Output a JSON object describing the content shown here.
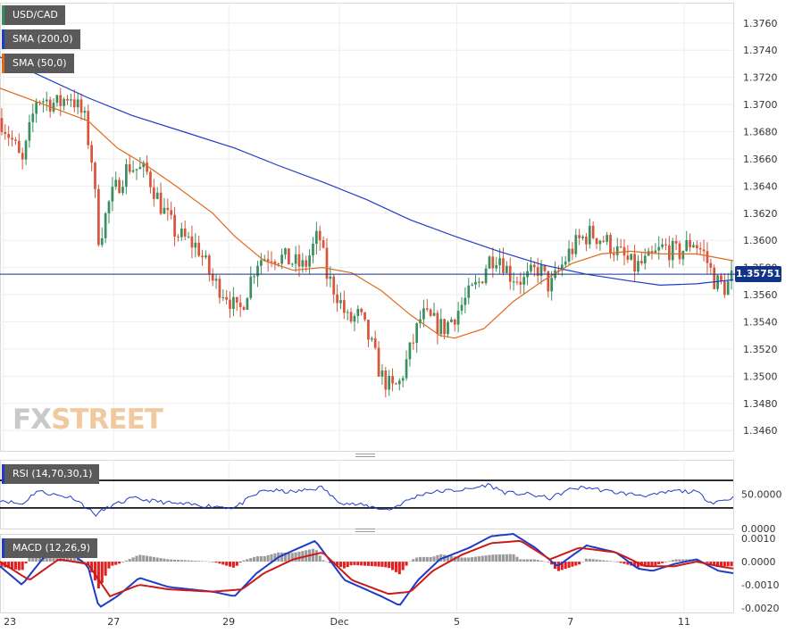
{
  "legend": {
    "pair": "USD/CAD",
    "sma200": "SMA (200,0)",
    "sma50": "SMA (50,0)",
    "rsi": "RSI (14,70,30,1)",
    "macd": "MACD (12,26,9)"
  },
  "brand": {
    "fx": "FX",
    "street": "STREET"
  },
  "last_price": "1.35751",
  "colors": {
    "up": "#3a8f5f",
    "down": "#d9543a",
    "sma200": "#1e3cc8",
    "sma50": "#e06a1a",
    "macd_line": "#1e3cc8",
    "signal_line": "#cc1a1a",
    "hist_positive": "#9a9a9a",
    "hist_negative": "#e32020",
    "last_price_bg": "#12338a"
  },
  "chart_data": [
    {
      "type": "candlestick",
      "title": "USD/CAD",
      "ylim": [
        1.3445,
        1.3775
      ],
      "yticks": [
        "1.3760",
        "1.3740",
        "1.3720",
        "1.3700",
        "1.3680",
        "1.3660",
        "1.3640",
        "1.3620",
        "1.3600",
        "1.3580",
        "1.3560",
        "1.3540",
        "1.3520",
        "1.3500",
        "1.3480",
        "1.3460"
      ],
      "xticks": [
        "23",
        "27",
        "29",
        "Dec",
        "5",
        "7",
        "11"
      ],
      "x_tick_pos": [
        0.005,
        0.155,
        0.312,
        0.463,
        0.623,
        0.778,
        0.933
      ],
      "price_path": [
        {
          "t": 0.0,
          "p": 1.369
        },
        {
          "t": 0.02,
          "p": 1.367
        },
        {
          "t": 0.03,
          "p": 1.3655
        },
        {
          "t": 0.05,
          "p": 1.3705
        },
        {
          "t": 0.08,
          "p": 1.37
        },
        {
          "t": 0.095,
          "p": 1.3708
        },
        {
          "t": 0.115,
          "p": 1.369
        },
        {
          "t": 0.125,
          "p": 1.366
        },
        {
          "t": 0.135,
          "p": 1.36
        },
        {
          "t": 0.15,
          "p": 1.363
        },
        {
          "t": 0.175,
          "p": 1.3655
        },
        {
          "t": 0.2,
          "p": 1.365
        },
        {
          "t": 0.22,
          "p": 1.3625
        },
        {
          "t": 0.24,
          "p": 1.3605
        },
        {
          "t": 0.27,
          "p": 1.3595
        },
        {
          "t": 0.29,
          "p": 1.357
        },
        {
          "t": 0.31,
          "p": 1.356
        },
        {
          "t": 0.325,
          "p": 1.3545
        },
        {
          "t": 0.335,
          "p": 1.356
        },
        {
          "t": 0.35,
          "p": 1.3585
        },
        {
          "t": 0.37,
          "p": 1.359
        },
        {
          "t": 0.395,
          "p": 1.3585
        },
        {
          "t": 0.415,
          "p": 1.358
        },
        {
          "t": 0.435,
          "p": 1.3605
        },
        {
          "t": 0.445,
          "p": 1.3575
        },
        {
          "t": 0.46,
          "p": 1.356
        },
        {
          "t": 0.475,
          "p": 1.354
        },
        {
          "t": 0.49,
          "p": 1.3545
        },
        {
          "t": 0.505,
          "p": 1.3525
        },
        {
          "t": 0.52,
          "p": 1.35
        },
        {
          "t": 0.535,
          "p": 1.349
        },
        {
          "t": 0.545,
          "p": 1.3495
        },
        {
          "t": 0.56,
          "p": 1.352
        },
        {
          "t": 0.575,
          "p": 1.3545
        },
        {
          "t": 0.59,
          "p": 1.354
        },
        {
          "t": 0.605,
          "p": 1.3535
        },
        {
          "t": 0.62,
          "p": 1.3545
        },
        {
          "t": 0.64,
          "p": 1.356
        },
        {
          "t": 0.655,
          "p": 1.357
        },
        {
          "t": 0.665,
          "p": 1.3585
        },
        {
          "t": 0.68,
          "p": 1.359
        },
        {
          "t": 0.695,
          "p": 1.3575
        },
        {
          "t": 0.715,
          "p": 1.357
        },
        {
          "t": 0.735,
          "p": 1.358
        },
        {
          "t": 0.75,
          "p": 1.3565
        },
        {
          "t": 0.76,
          "p": 1.3575
        },
        {
          "t": 0.775,
          "p": 1.359
        },
        {
          "t": 0.79,
          "p": 1.36
        },
        {
          "t": 0.805,
          "p": 1.3605
        },
        {
          "t": 0.825,
          "p": 1.36
        },
        {
          "t": 0.845,
          "p": 1.359
        },
        {
          "t": 0.865,
          "p": 1.358
        },
        {
          "t": 0.885,
          "p": 1.3585
        },
        {
          "t": 0.905,
          "p": 1.3595
        },
        {
          "t": 0.925,
          "p": 1.359
        },
        {
          "t": 0.945,
          "p": 1.36
        },
        {
          "t": 0.96,
          "p": 1.359
        },
        {
          "t": 0.975,
          "p": 1.357
        },
        {
          "t": 0.99,
          "p": 1.3565
        },
        {
          "t": 1.0,
          "p": 1.3575
        }
      ],
      "series": [
        {
          "name": "SMA (200,0)",
          "values": [
            {
              "t": 0.0,
              "p": 1.3735
            },
            {
              "t": 0.06,
              "p": 1.372
            },
            {
              "t": 0.12,
              "p": 1.3705
            },
            {
              "t": 0.18,
              "p": 1.3692
            },
            {
              "t": 0.25,
              "p": 1.368
            },
            {
              "t": 0.32,
              "p": 1.3668
            },
            {
              "t": 0.38,
              "p": 1.3655
            },
            {
              "t": 0.44,
              "p": 1.3643
            },
            {
              "t": 0.5,
              "p": 1.363
            },
            {
              "t": 0.56,
              "p": 1.3615
            },
            {
              "t": 0.62,
              "p": 1.3603
            },
            {
              "t": 0.68,
              "p": 1.3592
            },
            {
              "t": 0.74,
              "p": 1.3582
            },
            {
              "t": 0.8,
              "p": 1.3575
            },
            {
              "t": 0.86,
              "p": 1.357
            },
            {
              "t": 0.9,
              "p": 1.3567
            },
            {
              "t": 0.95,
              "p": 1.3568
            },
            {
              "t": 1.0,
              "p": 1.3571
            }
          ]
        },
        {
          "name": "SMA (50,0)",
          "values": [
            {
              "t": 0.0,
              "p": 1.3712
            },
            {
              "t": 0.06,
              "p": 1.37
            },
            {
              "t": 0.12,
              "p": 1.3688
            },
            {
              "t": 0.16,
              "p": 1.3668
            },
            {
              "t": 0.2,
              "p": 1.3655
            },
            {
              "t": 0.24,
              "p": 1.364
            },
            {
              "t": 0.29,
              "p": 1.362
            },
            {
              "t": 0.32,
              "p": 1.3603
            },
            {
              "t": 0.36,
              "p": 1.3585
            },
            {
              "t": 0.4,
              "p": 1.3578
            },
            {
              "t": 0.44,
              "p": 1.358
            },
            {
              "t": 0.48,
              "p": 1.3576
            },
            {
              "t": 0.52,
              "p": 1.3563
            },
            {
              "t": 0.56,
              "p": 1.3545
            },
            {
              "t": 0.6,
              "p": 1.353
            },
            {
              "t": 0.62,
              "p": 1.3528
            },
            {
              "t": 0.66,
              "p": 1.3535
            },
            {
              "t": 0.7,
              "p": 1.3555
            },
            {
              "t": 0.74,
              "p": 1.357
            },
            {
              "t": 0.78,
              "p": 1.3583
            },
            {
              "t": 0.82,
              "p": 1.359
            },
            {
              "t": 0.86,
              "p": 1.3592
            },
            {
              "t": 0.9,
              "p": 1.359
            },
            {
              "t": 0.95,
              "p": 1.359
            },
            {
              "t": 1.0,
              "p": 1.3585
            }
          ]
        }
      ]
    },
    {
      "type": "line",
      "title": "RSI (14,70,30,1)",
      "ylim": [
        0,
        100
      ],
      "yticks": [
        "50.0000",
        "0.0000"
      ],
      "levels": [
        70,
        30
      ],
      "values": [
        {
          "t": 0.0,
          "v": 42
        },
        {
          "t": 0.03,
          "v": 35
        },
        {
          "t": 0.05,
          "v": 55
        },
        {
          "t": 0.08,
          "v": 48
        },
        {
          "t": 0.1,
          "v": 45
        },
        {
          "t": 0.115,
          "v": 33
        },
        {
          "t": 0.13,
          "v": 20
        },
        {
          "t": 0.15,
          "v": 32
        },
        {
          "t": 0.18,
          "v": 44
        },
        {
          "t": 0.21,
          "v": 40
        },
        {
          "t": 0.24,
          "v": 36
        },
        {
          "t": 0.27,
          "v": 34
        },
        {
          "t": 0.3,
          "v": 32
        },
        {
          "t": 0.32,
          "v": 30
        },
        {
          "t": 0.34,
          "v": 44
        },
        {
          "t": 0.36,
          "v": 56
        },
        {
          "t": 0.4,
          "v": 53
        },
        {
          "t": 0.44,
          "v": 60
        },
        {
          "t": 0.455,
          "v": 44
        },
        {
          "t": 0.47,
          "v": 37
        },
        {
          "t": 0.5,
          "v": 33
        },
        {
          "t": 0.53,
          "v": 27
        },
        {
          "t": 0.56,
          "v": 43
        },
        {
          "t": 0.58,
          "v": 52
        },
        {
          "t": 0.61,
          "v": 55
        },
        {
          "t": 0.64,
          "v": 57
        },
        {
          "t": 0.665,
          "v": 64
        },
        {
          "t": 0.69,
          "v": 52
        },
        {
          "t": 0.72,
          "v": 50
        },
        {
          "t": 0.75,
          "v": 44
        },
        {
          "t": 0.78,
          "v": 58
        },
        {
          "t": 0.8,
          "v": 60
        },
        {
          "t": 0.83,
          "v": 54
        },
        {
          "t": 0.86,
          "v": 50
        },
        {
          "t": 0.89,
          "v": 48
        },
        {
          "t": 0.92,
          "v": 55
        },
        {
          "t": 0.95,
          "v": 53
        },
        {
          "t": 0.97,
          "v": 38
        },
        {
          "t": 0.99,
          "v": 42
        },
        {
          "t": 1.0,
          "v": 45
        }
      ]
    },
    {
      "type": "line",
      "title": "MACD (12,26,9)",
      "ylim": [
        -0.0022,
        0.0012
      ],
      "yticks": [
        "0.0010",
        "0.0000",
        "-0.0010",
        "-0.0020"
      ],
      "series": [
        {
          "name": "MACD",
          "values": [
            {
              "t": 0.0,
              "v": -0.0002
            },
            {
              "t": 0.03,
              "v": -0.001
            },
            {
              "t": 0.06,
              "v": 0.0002
            },
            {
              "t": 0.1,
              "v": 0.0003
            },
            {
              "t": 0.12,
              "v": -0.0002
            },
            {
              "t": 0.135,
              "v": -0.002
            },
            {
              "t": 0.16,
              "v": -0.0015
            },
            {
              "t": 0.19,
              "v": -0.0007
            },
            {
              "t": 0.23,
              "v": -0.0011
            },
            {
              "t": 0.29,
              "v": -0.0013
            },
            {
              "t": 0.32,
              "v": -0.0015
            },
            {
              "t": 0.35,
              "v": -0.0005
            },
            {
              "t": 0.38,
              "v": 0.0002
            },
            {
              "t": 0.43,
              "v": 0.0009
            },
            {
              "t": 0.47,
              "v": -0.0008
            },
            {
              "t": 0.52,
              "v": -0.0015
            },
            {
              "t": 0.545,
              "v": -0.0019
            },
            {
              "t": 0.57,
              "v": -0.0008
            },
            {
              "t": 0.6,
              "v": 0.0001
            },
            {
              "t": 0.64,
              "v": 0.0006
            },
            {
              "t": 0.67,
              "v": 0.0011
            },
            {
              "t": 0.7,
              "v": 0.0012
            },
            {
              "t": 0.73,
              "v": 0.0006
            },
            {
              "t": 0.76,
              "v": -0.0002
            },
            {
              "t": 0.8,
              "v": 0.0007
            },
            {
              "t": 0.84,
              "v": 0.0004
            },
            {
              "t": 0.87,
              "v": -0.0003
            },
            {
              "t": 0.89,
              "v": -0.0004
            },
            {
              "t": 0.92,
              "v": -0.0001
            },
            {
              "t": 0.95,
              "v": 0.0001
            },
            {
              "t": 0.98,
              "v": -0.0004
            },
            {
              "t": 1.0,
              "v": -0.0005
            }
          ]
        },
        {
          "name": "Signal",
          "values": [
            {
              "t": 0.0,
              "v": 0.0
            },
            {
              "t": 0.04,
              "v": -0.0008
            },
            {
              "t": 0.08,
              "v": 0.0001
            },
            {
              "t": 0.12,
              "v": -0.0001
            },
            {
              "t": 0.15,
              "v": -0.0015
            },
            {
              "t": 0.19,
              "v": -0.001
            },
            {
              "t": 0.23,
              "v": -0.0012
            },
            {
              "t": 0.29,
              "v": -0.0013
            },
            {
              "t": 0.33,
              "v": -0.0012
            },
            {
              "t": 0.36,
              "v": -0.0005
            },
            {
              "t": 0.4,
              "v": 0.0001
            },
            {
              "t": 0.44,
              "v": 0.0004
            },
            {
              "t": 0.48,
              "v": -0.0008
            },
            {
              "t": 0.53,
              "v": -0.0014
            },
            {
              "t": 0.56,
              "v": -0.0013
            },
            {
              "t": 0.59,
              "v": -0.0004
            },
            {
              "t": 0.63,
              "v": 0.0003
            },
            {
              "t": 0.67,
              "v": 0.0008
            },
            {
              "t": 0.71,
              "v": 0.0009
            },
            {
              "t": 0.75,
              "v": 0.0001
            },
            {
              "t": 0.79,
              "v": 0.0006
            },
            {
              "t": 0.84,
              "v": 0.0004
            },
            {
              "t": 0.88,
              "v": -0.0002
            },
            {
              "t": 0.92,
              "v": -0.0002
            },
            {
              "t": 0.95,
              "v": 0.0
            },
            {
              "t": 0.98,
              "v": -0.0002
            },
            {
              "t": 1.0,
              "v": -0.0003
            }
          ]
        }
      ]
    }
  ]
}
